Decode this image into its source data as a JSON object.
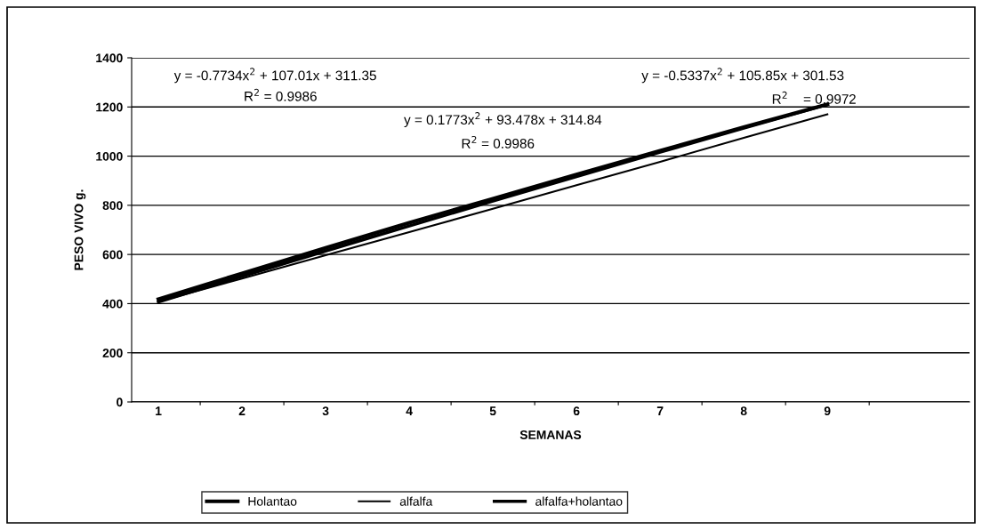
{
  "chart_data": {
    "type": "line",
    "xlabel": "SEMANAS",
    "ylabel": "PESO VIVO g.",
    "categories": [
      "1",
      "2",
      "3",
      "4",
      "5",
      "6",
      "7",
      "8",
      "9"
    ],
    "series": [
      {
        "name": "Holantao",
        "color": "#000000",
        "values": [
          418,
          523,
          627,
          729,
          827,
          925,
          1022,
          1118,
          1211
        ]
      },
      {
        "name": "alfalfa",
        "color": "#000000",
        "values": [
          408,
          502,
          597,
          691,
          786,
          882,
          977,
          1074,
          1170
        ]
      },
      {
        "name": "alfalfa+holantao",
        "color": "#000000",
        "values": [
          407,
          511,
          614,
          716,
          817,
          917,
          1016,
          1114,
          1210
        ]
      }
    ],
    "ylim": [
      0,
      1400
    ],
    "yticks": [
      0,
      200,
      400,
      600,
      800,
      1000,
      1200,
      1400
    ],
    "grid": "y",
    "legend": "bottom",
    "marker": "none",
    "line_style": "solid",
    "annotations": [
      "y = -0.7734x$^{2}$ + 107.01x + 311.35",
      "R$^{2}$ = 0.9986",
      "y = 0.1773x$^{2}$ + 93.478x + 314.84",
      "R$^{2}$ = 0.9986",
      "y = -0.5337x$^{2}$ + 105.85x + 301.53",
      "R$^{2}$    = 0.9972"
    ]
  }
}
